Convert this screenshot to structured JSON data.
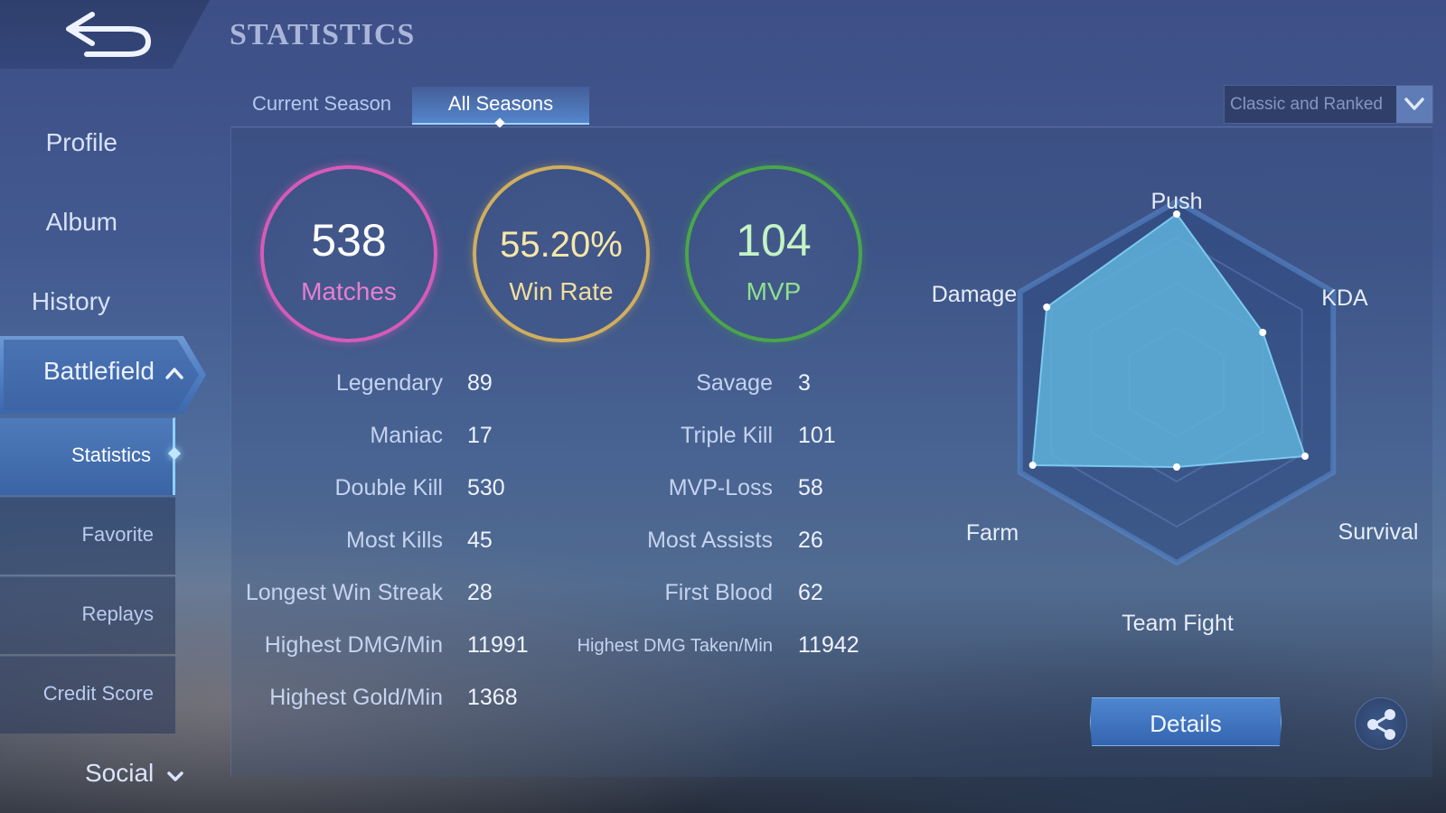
{
  "header": {
    "title": "STATISTICS"
  },
  "sidebar": {
    "items": [
      {
        "label": "Profile"
      },
      {
        "label": "Album"
      },
      {
        "label": "History"
      }
    ],
    "battlefield": {
      "label": "Battlefield",
      "subitems": [
        {
          "label": "Statistics"
        },
        {
          "label": "Favorite"
        },
        {
          "label": "Replays"
        },
        {
          "label": "Credit Score"
        }
      ]
    },
    "social": {
      "label": "Social"
    }
  },
  "tabs": [
    {
      "label": "Current Season"
    },
    {
      "label": "All Seasons"
    }
  ],
  "active_tab": "All Seasons",
  "mode_select": {
    "selected": "Classic and Ranked"
  },
  "summary": {
    "matches": {
      "value": "538",
      "label": "Matches",
      "color": "#d65bb8"
    },
    "win_rate": {
      "value": "55.20%",
      "label": "Win Rate",
      "color": "#cfae5e"
    },
    "mvp": {
      "value": "104",
      "label": "MVP",
      "color": "#4aa64a"
    }
  },
  "stats_left": [
    {
      "label": "Legendary",
      "value": "89"
    },
    {
      "label": "Maniac",
      "value": "17"
    },
    {
      "label": "Double Kill",
      "value": "530"
    },
    {
      "label": "Most Kills",
      "value": "45"
    },
    {
      "label": "Longest Win Streak",
      "value": "28"
    },
    {
      "label": "Highest DMG/Min",
      "value": "11991"
    },
    {
      "label": "Highest Gold/Min",
      "value": "1368"
    }
  ],
  "stats_right": [
    {
      "label": "Savage",
      "value": "3"
    },
    {
      "label": "Triple Kill",
      "value": "101"
    },
    {
      "label": "MVP-Loss",
      "value": "58"
    },
    {
      "label": "Most Assists",
      "value": "26"
    },
    {
      "label": "First Blood",
      "value": "62"
    },
    {
      "label": "Highest DMG Taken/Min",
      "value": "11942"
    }
  ],
  "radar": {
    "axes": [
      "Push",
      "KDA",
      "Survival",
      "Team Fight",
      "Farm",
      "Damage"
    ],
    "values": [
      0.93,
      0.55,
      0.82,
      0.47,
      0.92,
      0.83
    ],
    "fill_color": "#5fb2dc"
  },
  "buttons": {
    "details": "Details"
  },
  "icons": {
    "back": "back-arrow-icon",
    "share": "share-icon",
    "chevron": "chevron-down-icon"
  }
}
